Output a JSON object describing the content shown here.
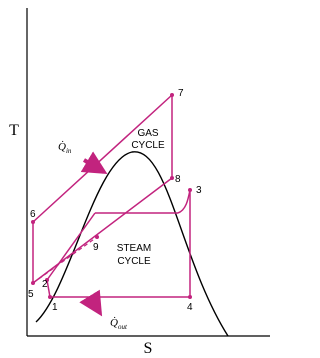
{
  "axes": {
    "y_label": "T",
    "x_label": "S"
  },
  "points": [
    {
      "label": "1"
    },
    {
      "label": "2"
    },
    {
      "label": "3"
    },
    {
      "label": "4"
    },
    {
      "label": "5"
    },
    {
      "label": "6"
    },
    {
      "label": "7"
    },
    {
      "label": "8"
    },
    {
      "label": "9"
    }
  ],
  "gas_cycle": {
    "line1": "GAS",
    "line2": "CYCLE"
  },
  "steam_cycle": {
    "line1": "STEAM",
    "line2": "CYCLE"
  },
  "heat_in": {
    "symbol": "Q̇",
    "subscript": "in"
  },
  "heat_out": {
    "symbol": "Q̇",
    "subscript": "out"
  }
}
